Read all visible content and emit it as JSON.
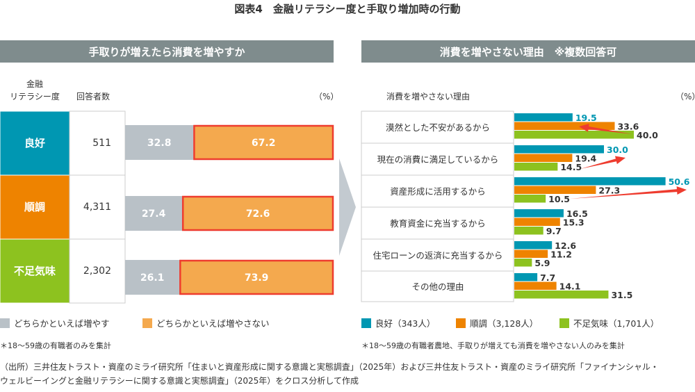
{
  "title": "図表4　金融リテラシー度と手取り増加時の行動",
  "left_header": "手取りが増えたら消費を増やすか",
  "right_header": "消費を増やさない理由　※複数回答可",
  "left_col1": [
    "金融",
    "リテラシー度"
  ],
  "left_col2": "回答者数",
  "pct_unit": "（%）",
  "right_col": "消費を増やさない理由",
  "colors": {
    "good": "#0097b2",
    "ok": "#ee8300",
    "lack": "#8dc21f",
    "increase": "#b9c1c7",
    "not_increase": "#f4a94e",
    "highlight": "#ee3c2f",
    "header": "#7f8c8d"
  },
  "chart_data": [
    {
      "type": "bar",
      "stacked": true,
      "orientation": "horizontal",
      "xlim": [
        0,
        100
      ],
      "categories": [
        "良好",
        "順調",
        "不足気味"
      ],
      "respondents": [
        "511",
        "4,311",
        "2,302"
      ],
      "series": [
        {
          "name": "どちらかといえば増やす",
          "values": [
            32.8,
            27.4,
            26.1
          ]
        },
        {
          "name": "どちらかといえば増やさない",
          "values": [
            67.2,
            72.6,
            73.9
          ]
        }
      ],
      "legend": "bottom"
    },
    {
      "type": "bar",
      "orientation": "horizontal",
      "categories": [
        "漠然とした不安があるから",
        "現在の消費に満足しているから",
        "資産形成に活用するから",
        "教育資金に充当するから",
        "住宅ローンの返済に充当するから",
        "その他の理由"
      ],
      "series": [
        {
          "name": "良好（343人）",
          "values": [
            19.5,
            30.0,
            50.6,
            16.5,
            12.6,
            7.7
          ]
        },
        {
          "name": "順調（3,128人）",
          "values": [
            33.6,
            19.4,
            27.3,
            15.3,
            11.2,
            14.1
          ]
        },
        {
          "name": "不足気味（1,701人）",
          "values": [
            40.0,
            14.5,
            10.5,
            9.7,
            5.9,
            31.5
          ]
        }
      ],
      "value_labels": [
        [
          "19.5",
          "30.0",
          "50.6",
          "16.5",
          "12.6",
          "7.7"
        ],
        [
          "33.6",
          "19.4",
          "27.3",
          "15.3",
          "11.2",
          "14.1"
        ],
        [
          "40.0",
          "14.5",
          "10.5",
          "9.7",
          "5.9",
          "31.5"
        ]
      ],
      "legend": "bottom"
    }
  ],
  "note_left": "＊18～59歳の有職者のみを集計",
  "note_right": "＊18～59歳の有職者農地、手取りが増えても消費を増やさない人のみを集計",
  "source": [
    "（出所）三井住友トラスト・資産のミライ研究所「住まいと資産形成に関する意識と実態調査」（2025年）および三井住友トラスト・資産のミライ研究所「ファイナンシャル・",
    "ウェルビーイングと金融リテラシーに関する意識と実態調査」（2025年）をクロス分析して作成"
  ]
}
